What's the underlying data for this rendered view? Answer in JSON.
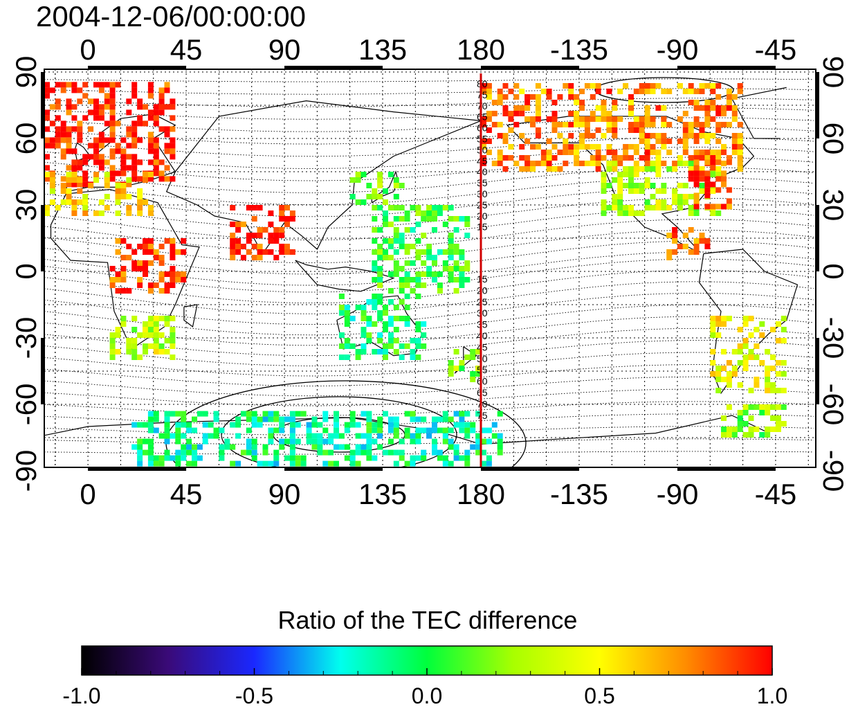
{
  "timestamp": "2004-12-06/00:00:00",
  "colorbar_title": "Ratio of the TEC difference",
  "colorbar_ticks": [
    "-1.0",
    "-0.5",
    "0.0",
    "0.5",
    "1.0"
  ],
  "colorbar_range": [
    -1.0,
    1.0
  ],
  "colormap_stops": [
    "#000000",
    "#3a0a78",
    "#1a28ff",
    "#00ffee",
    "#00ff3c",
    "#a8ff00",
    "#ffff00",
    "#ff8c00",
    "#ff0000"
  ],
  "lon_ticks_top": [
    "0",
    "45",
    "90",
    "135",
    "180",
    "-135",
    "-90",
    "-45"
  ],
  "lon_ticks_bottom": [
    "0",
    "45",
    "90",
    "135",
    "180",
    "-135",
    "-90",
    "-45"
  ],
  "lat_ticks_left": [
    "90",
    "60",
    "30",
    "0",
    "-30",
    "-60",
    "-90"
  ],
  "lat_ticks_right": [
    "90",
    "60",
    "30",
    "0",
    "-30",
    "-60",
    "-90"
  ],
  "contour_labels_north": [
    "80",
    "75",
    "70",
    "65",
    "60",
    "55",
    "50",
    "45",
    "40",
    "35",
    "30",
    "25",
    "20",
    "15"
  ],
  "contour_labels_south": [
    "15",
    "20",
    "25",
    "30",
    "35",
    "40",
    "45",
    "50",
    "55",
    "60",
    "65",
    "70",
    "75"
  ],
  "reference_line": {
    "longitude": 180,
    "color": "#d00000"
  },
  "data_regions": [
    {
      "name": "europe",
      "lon": [
        -20,
        40
      ],
      "lat": [
        38,
        85
      ],
      "ratio": 0.95
    },
    {
      "name": "north-africa",
      "lon": [
        -20,
        30
      ],
      "lat": [
        25,
        45
      ],
      "ratio": 0.55
    },
    {
      "name": "east-africa",
      "lon": [
        10,
        45
      ],
      "lat": [
        -10,
        15
      ],
      "ratio": 0.9
    },
    {
      "name": "southern-africa",
      "lon": [
        10,
        40
      ],
      "lat": [
        -40,
        -20
      ],
      "ratio": 0.35
    },
    {
      "name": "india",
      "lon": [
        65,
        95
      ],
      "lat": [
        5,
        30
      ],
      "ratio": 0.95
    },
    {
      "name": "japan",
      "lon": [
        120,
        145
      ],
      "lat": [
        30,
        45
      ],
      "ratio": 0.15
    },
    {
      "name": "pacific-west",
      "lon": [
        130,
        175
      ],
      "lat": [
        -10,
        30
      ],
      "ratio": 0.05
    },
    {
      "name": "australia",
      "lon": [
        115,
        155
      ],
      "lat": [
        -40,
        -10
      ],
      "ratio": -0.05
    },
    {
      "name": "new-zealand",
      "lon": [
        165,
        180
      ],
      "lat": [
        -50,
        -35
      ],
      "ratio": 0.2
    },
    {
      "name": "antarctica",
      "lon": [
        20,
        190
      ],
      "lat": [
        -88,
        -65
      ],
      "ratio": -0.1
    },
    {
      "name": "alaska-canada",
      "lon": [
        -180,
        -60
      ],
      "lat": [
        45,
        85
      ],
      "ratio": 0.75
    },
    {
      "name": "usa",
      "lon": [
        -125,
        -70
      ],
      "lat": [
        25,
        50
      ],
      "ratio": 0.3
    },
    {
      "name": "usa-east",
      "lon": [
        -85,
        -65
      ],
      "lat": [
        28,
        50
      ],
      "ratio": 0.9
    },
    {
      "name": "central-america",
      "lon": [
        -95,
        -75
      ],
      "lat": [
        5,
        20
      ],
      "ratio": 0.85
    },
    {
      "name": "south-america",
      "lon": [
        -75,
        -40
      ],
      "lat": [
        -55,
        -20
      ],
      "ratio": 0.45
    },
    {
      "name": "antarctic-peninsula",
      "lon": [
        -70,
        -40
      ],
      "lat": [
        -75,
        -60
      ],
      "ratio": 0.2
    }
  ]
}
